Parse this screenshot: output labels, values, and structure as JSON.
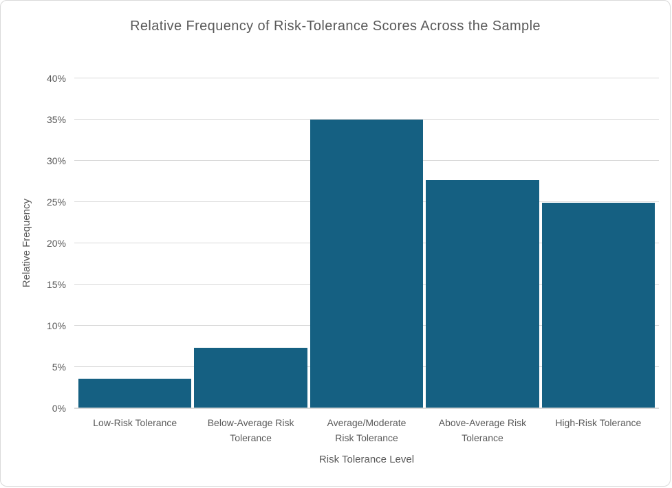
{
  "frame": {
    "background": "#ffffff",
    "border_color": "#d9d9d9"
  },
  "chart_data": {
    "type": "bar",
    "title": "Relative Frequency of Risk-Tolerance Scores Across the Sample",
    "categories": [
      "Low-Risk Tolerance",
      "Below-Average Risk Tolerance",
      "Average/Moderate Risk Tolerance",
      "Above-Average Risk Tolerance",
      "High-Risk Tolerance"
    ],
    "values": [
      3.6,
      7.3,
      35.0,
      27.7,
      24.9
    ],
    "xlabel": "Risk Tolerance Level",
    "ylabel": "Relative Frequency",
    "ylim": [
      0,
      40
    ],
    "ytick_step": 5,
    "ytick_labels": [
      "0%",
      "5%",
      "10%",
      "15%",
      "20%",
      "25%",
      "30%",
      "35%",
      "40%"
    ],
    "grid": true,
    "legend": false,
    "bar_color": "#156082",
    "text_color": "#595959",
    "gridline_color": "#d9d9d9"
  }
}
